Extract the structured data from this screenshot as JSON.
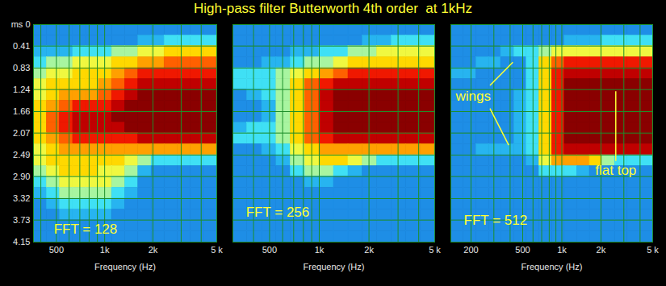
{
  "title": "High-pass filter Butterworth 4th order  at 1kHz",
  "chart_data": [
    {
      "type": "heatmap",
      "x_label": "Frequency (Hz)",
      "log": "x",
      "grid": true,
      "zlim": [
        0,
        10
      ],
      "xlim": [
        360,
        5000
      ],
      "xticks": [
        500,
        {
          "value": 1000,
          "label": "1k"
        },
        {
          "value": 2000,
          "label": "2k"
        },
        {
          "value": 5000,
          "label": "5 k"
        }
      ],
      "ylim": [
        0,
        4.15
      ],
      "yticks": [
        {
          "value": 0,
          "label": "ms 0"
        },
        0.41,
        0.83,
        1.24,
        1.66,
        2.07,
        2.49,
        {
          "value": 2.9,
          "label": "2.90"
        },
        3.32,
        3.73,
        4.15
      ],
      "freq_edges": [
        360,
        435,
        525,
        635,
        765,
        920,
        1110,
        1340,
        1620,
        1960,
        2360,
        2850,
        3440,
        4150,
        5000
      ],
      "time_edges": [
        0,
        0.21,
        0.41,
        0.62,
        0.83,
        1.04,
        1.24,
        1.45,
        1.66,
        1.87,
        2.07,
        2.28,
        2.49,
        2.7,
        2.9,
        3.11,
        3.32,
        3.53,
        3.73,
        3.94,
        4.15
      ],
      "cells": [
        [
          0,
          0,
          0,
          0,
          0,
          0,
          0,
          0,
          0,
          0,
          0,
          0,
          0,
          0
        ],
        [
          0,
          0,
          0,
          0,
          0,
          0,
          0,
          0,
          1,
          1,
          2,
          2,
          2,
          2
        ],
        [
          1,
          1,
          1,
          2,
          2,
          2,
          3,
          3,
          4,
          4,
          5,
          5,
          5,
          5
        ],
        [
          2,
          3,
          3,
          4,
          4,
          4,
          5,
          5,
          6,
          6,
          7,
          7,
          7,
          7
        ],
        [
          3,
          4,
          4,
          5,
          5,
          5,
          6,
          7,
          8,
          8,
          8,
          8,
          8,
          8
        ],
        [
          4,
          5,
          5,
          5,
          5,
          6,
          7,
          8,
          9,
          9,
          9,
          9,
          9,
          9
        ],
        [
          4,
          5,
          6,
          6,
          6,
          7,
          8,
          9,
          10,
          10,
          10,
          10,
          10,
          10
        ],
        [
          5,
          6,
          7,
          8,
          8,
          8,
          9,
          10,
          10,
          10,
          10,
          10,
          10,
          10
        ],
        [
          5,
          7,
          8,
          9,
          9,
          9,
          10,
          10,
          10,
          10,
          10,
          10,
          10,
          10
        ],
        [
          5,
          7,
          8,
          9,
          9,
          9,
          9,
          10,
          10,
          10,
          10,
          10,
          10,
          10
        ],
        [
          5,
          6,
          7,
          8,
          8,
          8,
          8,
          8,
          9,
          9,
          9,
          9,
          9,
          9
        ],
        [
          4,
          5,
          6,
          6,
          6,
          6,
          6,
          6,
          6,
          6,
          6,
          6,
          6,
          6
        ],
        [
          4,
          5,
          5,
          5,
          5,
          5,
          5,
          4,
          3,
          2,
          2,
          2,
          2,
          2
        ],
        [
          3,
          4,
          5,
          5,
          5,
          4,
          4,
          3,
          1,
          0,
          0,
          0,
          0,
          0
        ],
        [
          2,
          3,
          4,
          4,
          4,
          4,
          3,
          2,
          0,
          0,
          0,
          0,
          0,
          0
        ],
        [
          1,
          2,
          3,
          3,
          3,
          3,
          2,
          1,
          0,
          0,
          0,
          0,
          0,
          0
        ],
        [
          0,
          1,
          2,
          2,
          2,
          2,
          1,
          0,
          0,
          0,
          0,
          0,
          0,
          0
        ],
        [
          0,
          0,
          1,
          1,
          1,
          1,
          0,
          0,
          0,
          0,
          0,
          0,
          0,
          0
        ],
        [
          0,
          0,
          0,
          0,
          0,
          0,
          0,
          0,
          0,
          0,
          0,
          0,
          0,
          0
        ],
        [
          0,
          0,
          0,
          0,
          0,
          0,
          0,
          0,
          0,
          0,
          0,
          0,
          0,
          0
        ]
      ],
      "annotations": [
        {
          "text": "FFT = 128",
          "x": 760,
          "y": 3.9
        }
      ],
      "lines": []
    },
    {
      "type": "heatmap",
      "x_label": "Frequency (Hz)",
      "log": "x",
      "grid": true,
      "zlim": [
        0,
        10
      ],
      "tick_labels": "x",
      "xlim": [
        300,
        5000
      ],
      "xticks": [
        500,
        {
          "value": 1000,
          "label": "1k"
        },
        {
          "value": 2000,
          "label": "2k"
        },
        {
          "value": 5000,
          "label": "5 k"
        }
      ],
      "ylim": [
        0,
        4.15
      ],
      "yticks": [
        {
          "value": 0,
          "label": "ms 0"
        },
        0.41,
        0.83,
        1.24,
        1.66,
        2.07,
        2.49,
        {
          "value": 2.9,
          "label": "2.90"
        },
        3.32,
        3.73,
        4.15
      ],
      "freq_edges": [
        300,
        365,
        450,
        550,
        670,
        820,
        1000,
        1225,
        1500,
        1830,
        2240,
        2740,
        3345,
        4090,
        5000
      ],
      "time_edges": [
        0,
        0.21,
        0.41,
        0.62,
        0.83,
        1.04,
        1.24,
        1.45,
        1.66,
        1.87,
        2.07,
        2.28,
        2.49,
        2.7,
        2.9,
        3.11,
        3.32,
        3.53,
        3.73,
        3.94,
        4.15
      ],
      "cells": [
        [
          0,
          0,
          0,
          0,
          0,
          0,
          0,
          0,
          0,
          0,
          0,
          0,
          0,
          0
        ],
        [
          0,
          0,
          0,
          0,
          0,
          0,
          0,
          0,
          0,
          1,
          1,
          2,
          2,
          2
        ],
        [
          0,
          0,
          0,
          0,
          1,
          1,
          2,
          2,
          3,
          3,
          4,
          4,
          4,
          4
        ],
        [
          0,
          0,
          1,
          1,
          2,
          3,
          3,
          4,
          5,
          5,
          5,
          5,
          5,
          5
        ],
        [
          2,
          2,
          2,
          3,
          4,
          5,
          6,
          7,
          8,
          8,
          8,
          8,
          8,
          8
        ],
        [
          2,
          2,
          2,
          3,
          5,
          7,
          8,
          9,
          9,
          9,
          9,
          9,
          9,
          9
        ],
        [
          0,
          1,
          2,
          3,
          5,
          7,
          9,
          10,
          10,
          10,
          10,
          10,
          10,
          10
        ],
        [
          0,
          0,
          1,
          3,
          5,
          7,
          9,
          10,
          10,
          10,
          10,
          10,
          10,
          10
        ],
        [
          0,
          0,
          1,
          3,
          5,
          7,
          9,
          10,
          10,
          10,
          10,
          10,
          10,
          10
        ],
        [
          1,
          2,
          2,
          3,
          5,
          7,
          9,
          10,
          10,
          10,
          10,
          10,
          10,
          10
        ],
        [
          2,
          2,
          2,
          3,
          5,
          7,
          8,
          9,
          9,
          9,
          9,
          9,
          9,
          9
        ],
        [
          0,
          0,
          1,
          2,
          4,
          5,
          6,
          6,
          6,
          6,
          6,
          6,
          6,
          6
        ],
        [
          0,
          0,
          0,
          1,
          3,
          4,
          5,
          5,
          4,
          3,
          2,
          2,
          2,
          2
        ],
        [
          0,
          0,
          0,
          0,
          2,
          3,
          3,
          2,
          1,
          0,
          0,
          0,
          0,
          0
        ],
        [
          0,
          0,
          0,
          0,
          0,
          1,
          1,
          0,
          0,
          0,
          0,
          0,
          0,
          0
        ],
        [
          0,
          0,
          0,
          0,
          0,
          0,
          0,
          0,
          0,
          0,
          0,
          0,
          0,
          0
        ],
        [
          0,
          0,
          0,
          0,
          0,
          0,
          0,
          0,
          0,
          0,
          0,
          0,
          0,
          0
        ],
        [
          0,
          0,
          0,
          0,
          0,
          0,
          0,
          0,
          0,
          0,
          0,
          0,
          0,
          0
        ],
        [
          0,
          0,
          0,
          0,
          0,
          0,
          0,
          0,
          0,
          0,
          0,
          0,
          0,
          0
        ],
        [
          0,
          0,
          0,
          0,
          0,
          0,
          0,
          0,
          0,
          0,
          0,
          0,
          0,
          0
        ]
      ],
      "annotations": [
        {
          "text": "FFT = 256",
          "x": 560,
          "y": 3.58
        }
      ],
      "lines": []
    },
    {
      "type": "heatmap",
      "x_label": "Frequency (Hz)",
      "log": "x",
      "grid": true,
      "zlim": [
        0,
        10
      ],
      "tick_labels": "x",
      "xlim": [
        140,
        5000
      ],
      "xticks": [
        200,
        500,
        {
          "value": 1000,
          "label": "1k"
        },
        {
          "value": 2000,
          "label": "2k"
        },
        {
          "value": 5000,
          "label": "5 k"
        }
      ],
      "ylim": [
        0,
        4.15
      ],
      "yticks": [
        {
          "value": 0,
          "label": "ms 0"
        },
        0.41,
        0.83,
        1.24,
        1.66,
        2.07,
        2.49,
        {
          "value": 2.9,
          "label": "2.90"
        },
        3.32,
        3.73,
        4.15
      ],
      "freq_edges": [
        140,
        175,
        220,
        275,
        340,
        430,
        535,
        670,
        840,
        1050,
        1310,
        1640,
        2050,
        2560,
        3200,
        4000,
        5000
      ],
      "time_edges": [
        0,
        0.21,
        0.41,
        0.62,
        0.83,
        1.04,
        1.24,
        1.45,
        1.66,
        1.87,
        2.07,
        2.28,
        2.49,
        2.7,
        2.9,
        3.11,
        3.32,
        3.53,
        3.73,
        3.94,
        4.15
      ],
      "cells": [
        [
          0,
          0,
          0,
          0,
          0,
          0,
          0,
          0,
          0,
          0,
          0,
          0,
          0,
          0,
          0,
          0
        ],
        [
          0,
          0,
          0,
          0,
          0,
          0,
          0,
          0,
          0,
          1,
          1,
          1,
          2,
          2,
          2,
          2
        ],
        [
          0,
          0,
          0,
          0,
          1,
          2,
          2,
          3,
          4,
          4,
          4,
          4,
          4,
          4,
          4,
          4
        ],
        [
          0,
          0,
          1,
          1,
          0,
          0,
          2,
          5,
          7,
          8,
          8,
          8,
          8,
          8,
          8,
          8
        ],
        [
          1,
          1,
          0,
          0,
          0,
          0,
          2,
          5,
          8,
          9,
          9,
          9,
          9,
          9,
          9,
          9
        ],
        [
          0,
          0,
          0,
          0,
          0,
          0,
          2,
          5,
          8,
          10,
          10,
          10,
          10,
          10,
          10,
          10
        ],
        [
          0,
          0,
          0,
          0,
          0,
          1,
          2,
          5,
          8,
          10,
          10,
          10,
          10,
          10,
          10,
          10
        ],
        [
          0,
          0,
          0,
          0,
          0,
          1,
          2,
          5,
          8,
          10,
          10,
          10,
          10,
          10,
          10,
          10
        ],
        [
          0,
          0,
          0,
          0,
          0,
          1,
          2,
          5,
          8,
          10,
          10,
          10,
          10,
          10,
          10,
          10
        ],
        [
          0,
          0,
          0,
          0,
          0,
          1,
          2,
          5,
          8,
          10,
          10,
          10,
          10,
          10,
          10,
          10
        ],
        [
          0,
          0,
          0,
          0,
          0,
          1,
          2,
          5,
          8,
          10,
          10,
          10,
          10,
          10,
          10,
          10
        ],
        [
          0,
          0,
          1,
          1,
          1,
          1,
          2,
          5,
          8,
          9,
          9,
          9,
          9,
          9,
          9,
          9
        ],
        [
          0,
          0,
          0,
          0,
          0,
          0,
          1,
          4,
          6,
          6,
          6,
          5,
          3,
          2,
          2,
          2
        ],
        [
          0,
          0,
          0,
          0,
          0,
          0,
          0,
          2,
          2,
          2,
          1,
          0,
          0,
          0,
          0,
          0
        ],
        [
          0,
          0,
          0,
          0,
          0,
          0,
          0,
          0,
          0,
          0,
          0,
          0,
          0,
          0,
          0,
          0
        ],
        [
          0,
          0,
          0,
          0,
          0,
          0,
          0,
          0,
          0,
          0,
          0,
          0,
          0,
          0,
          0,
          0
        ],
        [
          0,
          0,
          0,
          0,
          0,
          0,
          0,
          0,
          0,
          0,
          0,
          0,
          0,
          0,
          0,
          0
        ],
        [
          0,
          0,
          0,
          0,
          0,
          0,
          0,
          0,
          0,
          0,
          0,
          0,
          0,
          0,
          0,
          0
        ],
        [
          0,
          0,
          0,
          0,
          0,
          0,
          0,
          0,
          0,
          0,
          0,
          0,
          0,
          0,
          0,
          0
        ],
        [
          0,
          0,
          0,
          0,
          0,
          0,
          0,
          0,
          0,
          0,
          0,
          0,
          0,
          0,
          0,
          0
        ]
      ],
      "annotations": [
        {
          "text": "wings",
          "x": 208,
          "y": 1.37
        },
        {
          "text": "flat top",
          "x": 2600,
          "y": 2.78
        },
        {
          "text": "FFT = 512",
          "x": 309,
          "y": 3.74
        }
      ],
      "lines": [
        {
          "x1": 280,
          "y1": 1.16,
          "x2": 420,
          "y2": 0.72
        },
        {
          "x1": 280,
          "y1": 1.6,
          "x2": 390,
          "y2": 2.3
        },
        {
          "x1": 2600,
          "y1": 1.27,
          "x2": 2600,
          "y2": 2.6
        }
      ]
    }
  ]
}
